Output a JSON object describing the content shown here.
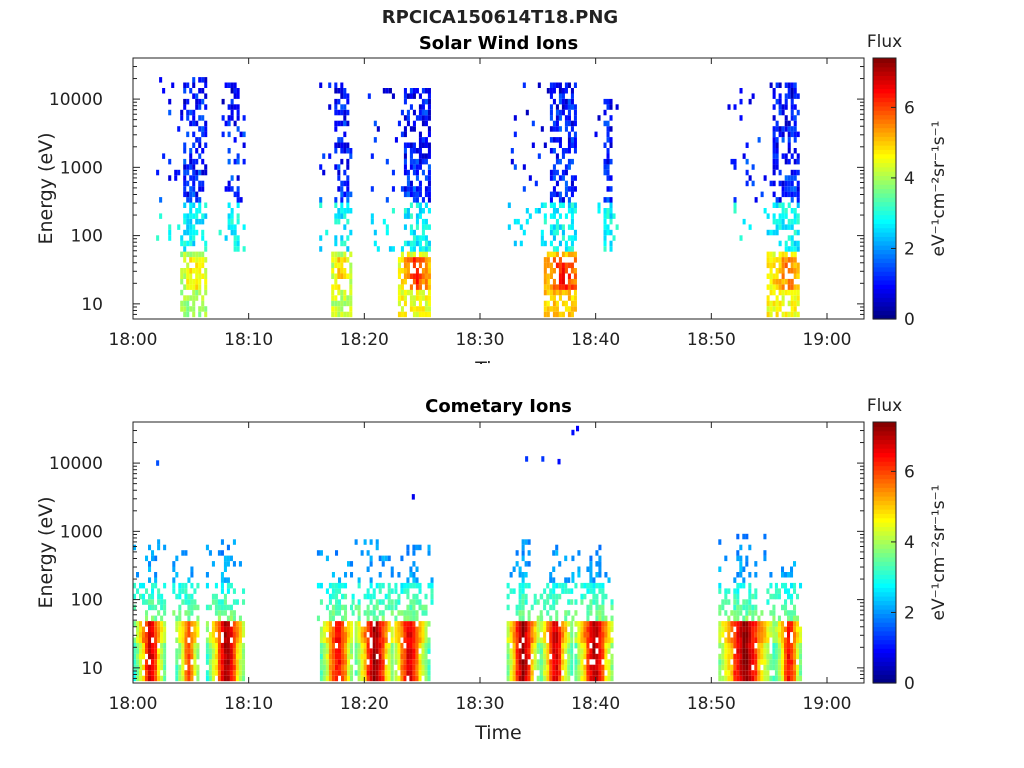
{
  "figure_title": "RPCICA150614T18.PNG",
  "chart_data": [
    {
      "type": "heatmap",
      "title": "Solar Wind Ions",
      "xlabel": "Time",
      "ylabel": "Energy (eV)",
      "x_ticks": [
        "18:00",
        "18:10",
        "18:20",
        "18:30",
        "18:40",
        "18:50",
        "19:00"
      ],
      "x_tick_minutes": [
        0,
        10,
        20,
        30,
        40,
        50,
        60
      ],
      "xlim_minutes": [
        0,
        63.2
      ],
      "y_ticks": [
        "10",
        "100",
        "1000",
        "10000"
      ],
      "y_tick_values": [
        10,
        100,
        1000,
        10000
      ],
      "ylim": [
        6,
        40000
      ],
      "y_scale": "log",
      "colorbar": {
        "title": "Flux",
        "label": "eV⁻¹cm⁻²sr⁻¹s⁻¹",
        "ticks": [
          "0",
          "2",
          "4",
          "6"
        ],
        "tick_values": [
          0,
          2,
          4,
          6
        ],
        "range": [
          0,
          7.4
        ]
      },
      "colormap": "jet",
      "bursts": [
        {
          "start_min": 2.0,
          "end_min": 6.4,
          "core_min": 5.2,
          "peak_flux": 4.8,
          "max_energy": 22000,
          "low_energy_flux": 4.0
        },
        {
          "start_min": 7.4,
          "end_min": 9.6,
          "core_min": 8.6,
          "peak_flux": 2.8,
          "max_energy": 18000,
          "low_energy_flux": 0
        },
        {
          "start_min": 16.1,
          "end_min": 18.8,
          "core_min": 17.9,
          "peak_flux": 5.2,
          "max_energy": 17000,
          "low_energy_flux": 4.2
        },
        {
          "start_min": 20.3,
          "end_min": 25.6,
          "core_min": 24.4,
          "peak_flux": 6.2,
          "max_energy": 14000,
          "low_energy_flux": 4.5
        },
        {
          "start_min": 32.4,
          "end_min": 38.3,
          "core_min": 37.1,
          "peak_flux": 6.4,
          "max_energy": 18000,
          "low_energy_flux": 5.0
        },
        {
          "start_min": 39.9,
          "end_min": 41.9,
          "core_min": 41.0,
          "peak_flux": 2.6,
          "max_energy": 10000,
          "low_energy_flux": 0
        },
        {
          "start_min": 51.4,
          "end_min": 57.5,
          "core_min": 56.6,
          "peak_flux": 5.6,
          "max_energy": 17000,
          "low_energy_flux": 4.6
        }
      ]
    },
    {
      "type": "heatmap",
      "title": "Cometary Ions",
      "xlabel": "Time",
      "ylabel": "Energy (eV)",
      "x_ticks": [
        "18:00",
        "18:10",
        "18:20",
        "18:30",
        "18:40",
        "18:50",
        "19:00"
      ],
      "x_tick_minutes": [
        0,
        10,
        20,
        30,
        40,
        50,
        60
      ],
      "xlim_minutes": [
        0,
        63.2
      ],
      "y_ticks": [
        "10",
        "100",
        "1000",
        "10000"
      ],
      "y_tick_values": [
        10,
        100,
        1000,
        10000
      ],
      "ylim": [
        6,
        40000
      ],
      "y_scale": "log",
      "colorbar": {
        "title": "Flux",
        "label": "eV⁻¹cm⁻²sr⁻¹s⁻¹",
        "ticks": [
          "0",
          "2",
          "4",
          "6"
        ],
        "tick_values": [
          0,
          2,
          4,
          6
        ],
        "range": [
          0,
          7.4
        ]
      },
      "colormap": "jet",
      "bursts": [
        {
          "start_min": 0.0,
          "end_min": 2.6,
          "core_min": 1.4,
          "peak_flux": 7.0,
          "max_energy": 700
        },
        {
          "start_min": 3.4,
          "end_min": 5.6,
          "core_min": 4.7,
          "peak_flux": 6.0,
          "max_energy": 500
        },
        {
          "start_min": 6.3,
          "end_min": 9.5,
          "core_min": 8.0,
          "peak_flux": 7.3,
          "max_energy": 700
        },
        {
          "start_min": 15.9,
          "end_min": 18.9,
          "core_min": 17.6,
          "peak_flux": 6.6,
          "max_energy": 500
        },
        {
          "start_min": 18.9,
          "end_min": 22.3,
          "core_min": 20.8,
          "peak_flux": 7.4,
          "max_energy": 800
        },
        {
          "start_min": 22.6,
          "end_min": 25.8,
          "core_min": 23.8,
          "peak_flux": 6.9,
          "max_energy": 600
        },
        {
          "start_min": 32.3,
          "end_min": 35.2,
          "core_min": 33.6,
          "peak_flux": 7.4,
          "max_energy": 700
        },
        {
          "start_min": 35.2,
          "end_min": 37.9,
          "core_min": 36.4,
          "peak_flux": 7.0,
          "max_energy": 600
        },
        {
          "start_min": 37.9,
          "end_min": 41.3,
          "core_min": 39.8,
          "peak_flux": 7.2,
          "max_energy": 700
        },
        {
          "start_min": 50.6,
          "end_min": 55.5,
          "core_min": 52.8,
          "peak_flux": 7.4,
          "max_energy": 900
        },
        {
          "start_min": 55.5,
          "end_min": 57.8,
          "core_min": 56.6,
          "peak_flux": 6.6,
          "max_energy": 500
        }
      ],
      "isolated_points": [
        {
          "minute": 2.0,
          "energy": 10000,
          "flux": 1.5
        },
        {
          "minute": 24.1,
          "energy": 3200,
          "flux": 0.8
        },
        {
          "minute": 33.9,
          "energy": 11500,
          "flux": 1.3
        },
        {
          "minute": 35.3,
          "energy": 11500,
          "flux": 1.3
        },
        {
          "minute": 36.7,
          "energy": 10500,
          "flux": 1.0
        },
        {
          "minute": 37.9,
          "energy": 28000,
          "flux": 1.0
        },
        {
          "minute": 38.3,
          "energy": 32000,
          "flux": 0.9
        }
      ]
    }
  ]
}
